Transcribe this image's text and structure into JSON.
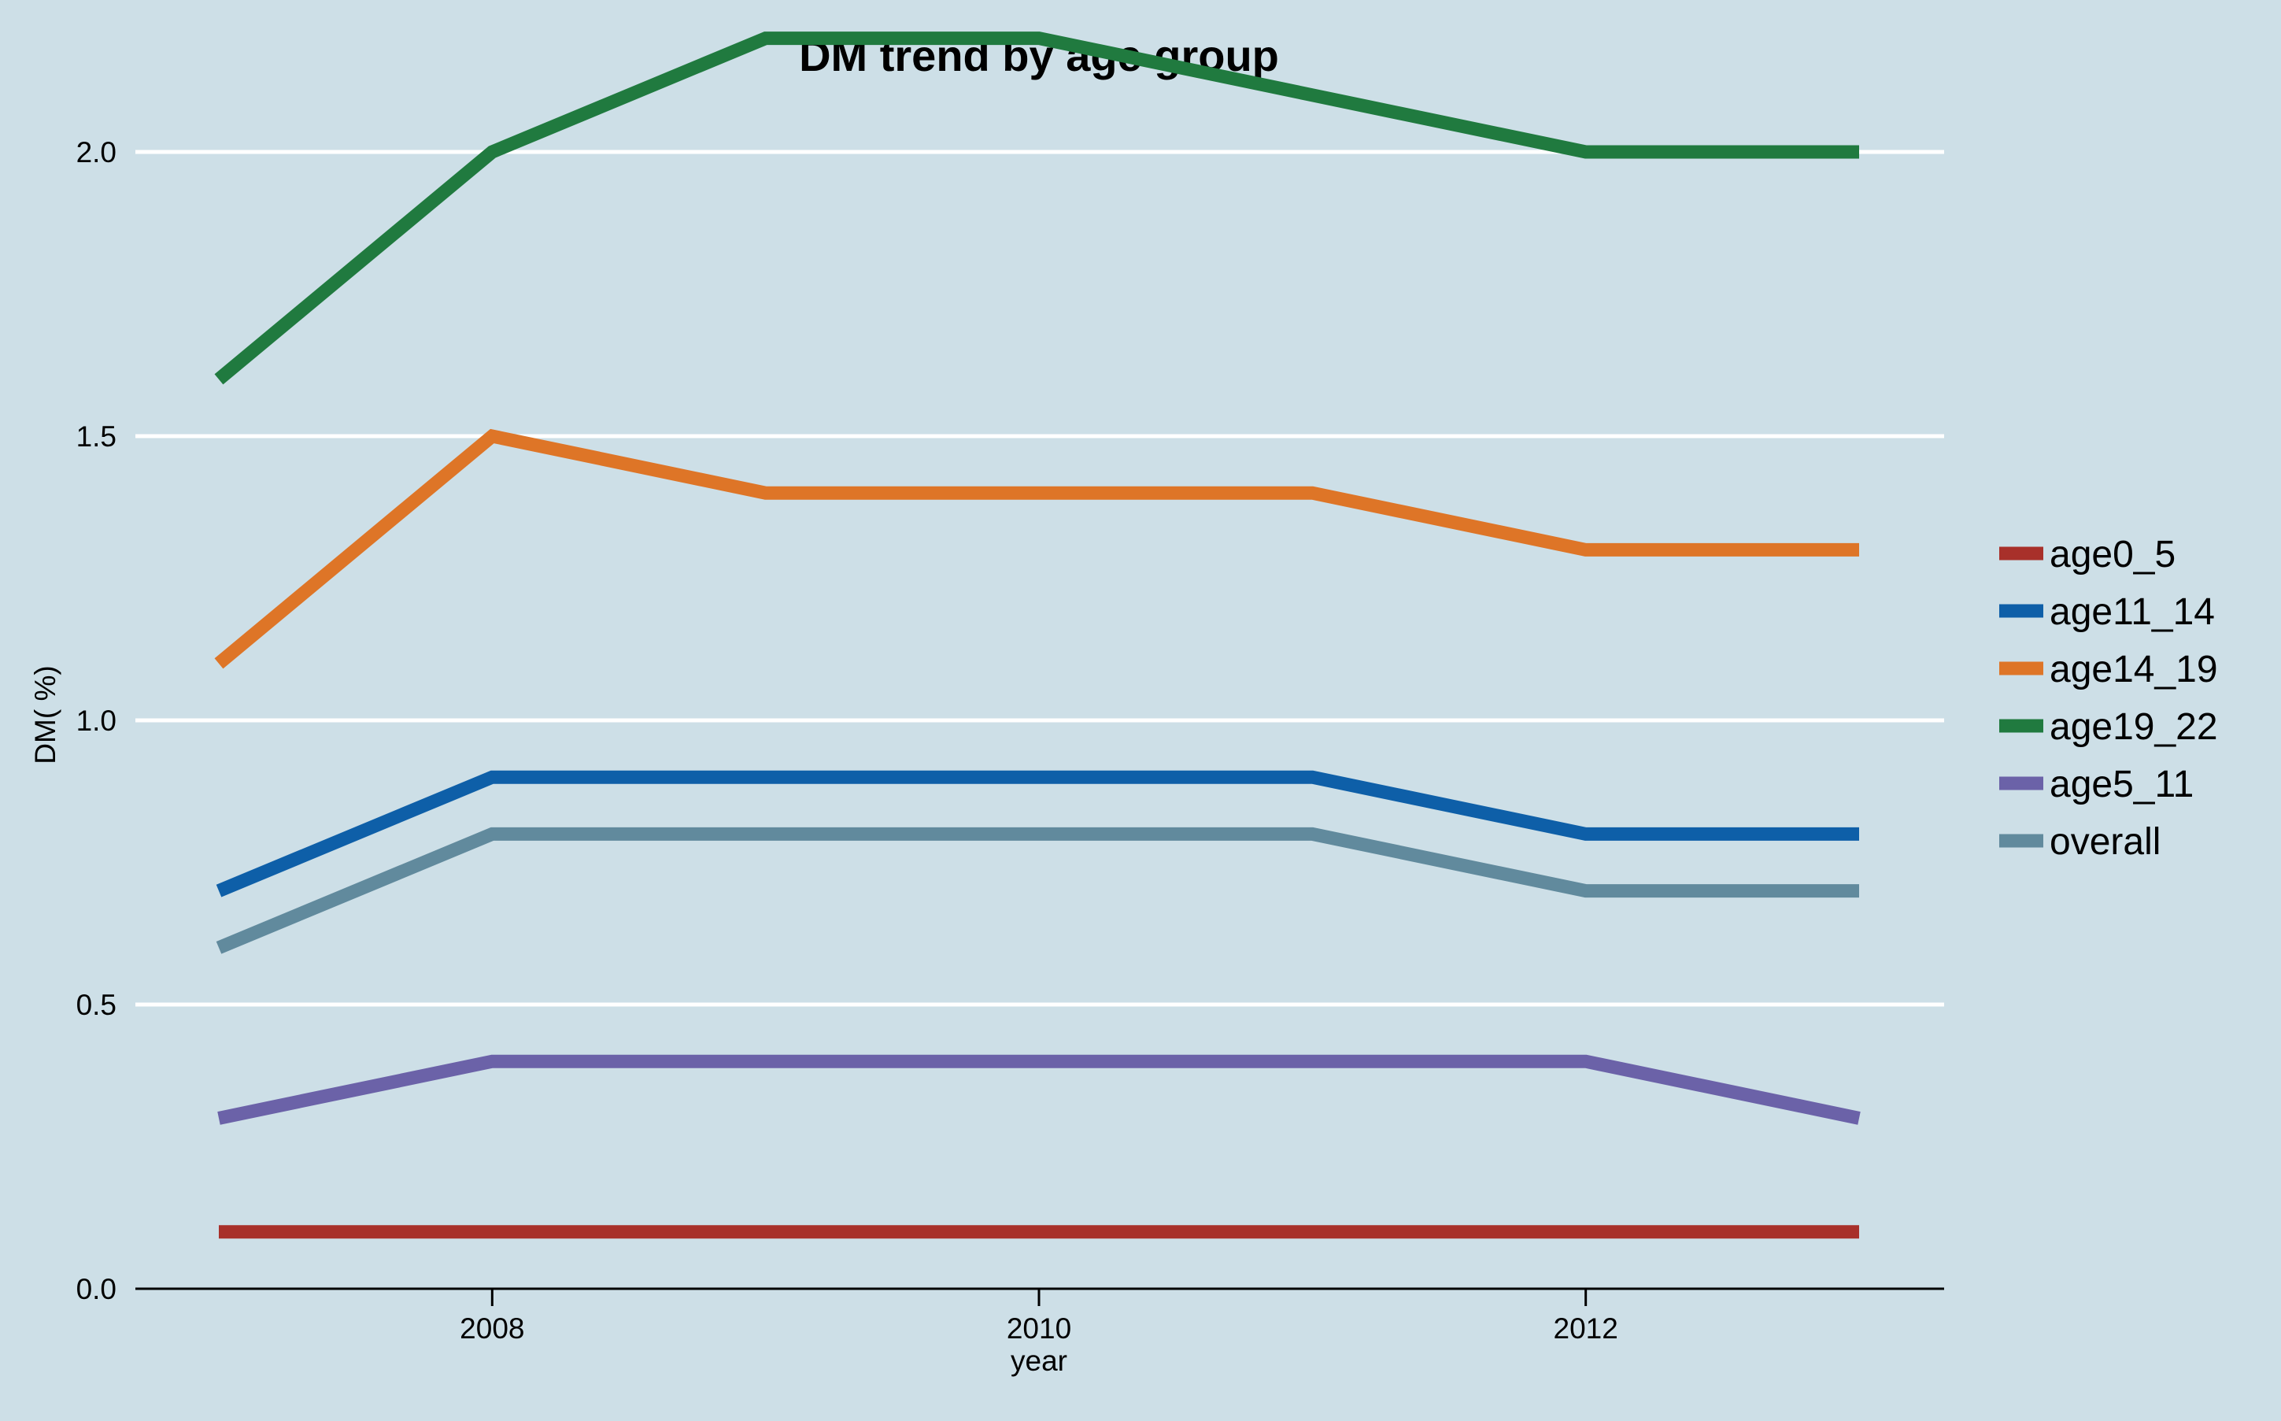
{
  "chart_data": {
    "type": "line",
    "title": "DM trend by age group",
    "xlabel": "year",
    "ylabel": "DM( %)",
    "x": [
      2007,
      2008,
      2009,
      2010,
      2011,
      2012,
      2013
    ],
    "xticks": [
      2008,
      2010,
      2012
    ],
    "xlim": [
      2007,
      2013
    ],
    "ylim": [
      0,
      2.2
    ],
    "yticks": [
      "0.0",
      "0.5",
      "1.0",
      "1.5",
      "2.0"
    ],
    "grid": "horizontal",
    "legend_position": "right",
    "series": [
      {
        "name": "age0_5",
        "color": "#a8302a",
        "values": [
          0.1,
          0.1,
          0.1,
          0.1,
          0.1,
          0.1,
          0.1
        ]
      },
      {
        "name": "age11_14",
        "color": "#0e5fa8",
        "values": [
          0.7,
          0.9,
          0.9,
          0.9,
          0.9,
          0.8,
          0.8
        ]
      },
      {
        "name": "age14_19",
        "color": "#de7527",
        "values": [
          1.1,
          1.5,
          1.4,
          1.4,
          1.4,
          1.3,
          1.3
        ]
      },
      {
        "name": "age19_22",
        "color": "#207a3f",
        "values": [
          1.6,
          2.0,
          2.2,
          2.2,
          2.1,
          2.0,
          2.0
        ]
      },
      {
        "name": "age5_11",
        "color": "#6b62a8",
        "values": [
          0.3,
          0.4,
          0.4,
          0.4,
          0.4,
          0.4,
          0.3
        ]
      },
      {
        "name": "overall",
        "color": "#618a9d",
        "values": [
          0.6,
          0.8,
          0.8,
          0.8,
          0.8,
          0.7,
          0.7
        ]
      }
    ]
  }
}
